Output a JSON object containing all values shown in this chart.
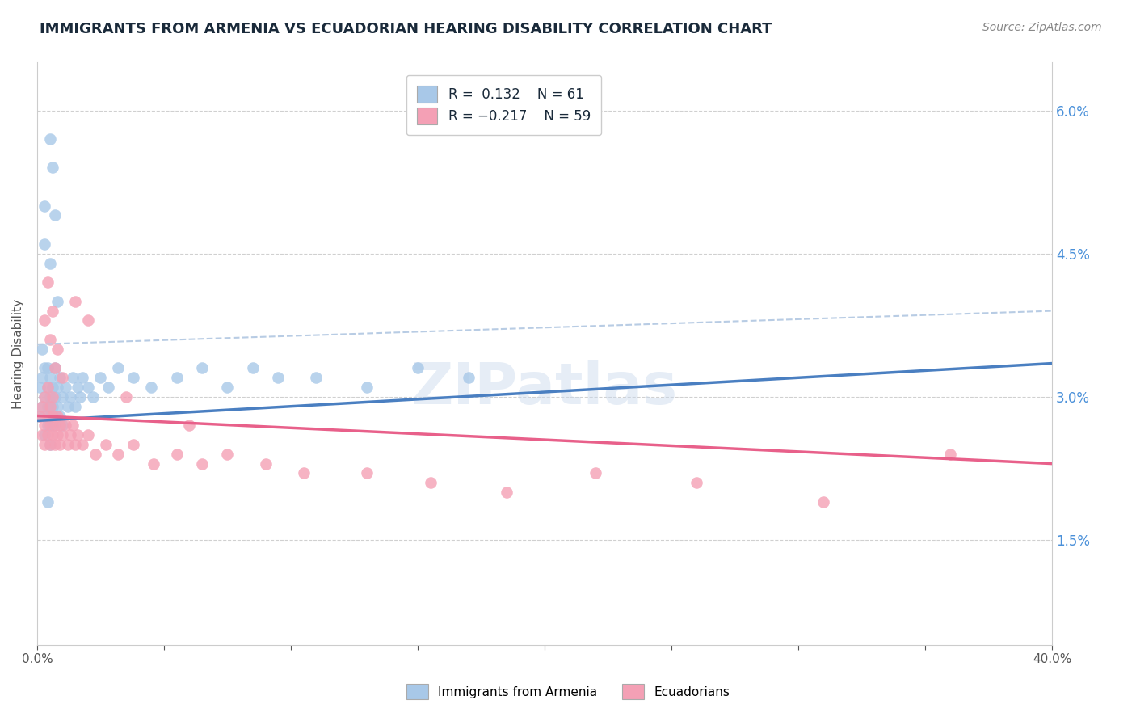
{
  "title": "IMMIGRANTS FROM ARMENIA VS ECUADORIAN HEARING DISABILITY CORRELATION CHART",
  "source": "Source: ZipAtlas.com",
  "ylabel": "Hearing Disability",
  "label1": "Immigrants from Armenia",
  "label2": "Ecuadorians",
  "x_min": 0.0,
  "x_max": 0.4,
  "y_min": 0.004,
  "y_max": 0.065,
  "y_ticks": [
    0.015,
    0.03,
    0.045,
    0.06
  ],
  "y_tick_labels": [
    "1.5%",
    "3.0%",
    "4.5%",
    "6.0%"
  ],
  "x_ticks": [
    0.0,
    0.05,
    0.1,
    0.15,
    0.2,
    0.25,
    0.3,
    0.35,
    0.4
  ],
  "x_tick_labels": [
    "0.0%",
    "",
    "",
    "",
    "",
    "",
    "",
    "",
    "40.0%"
  ],
  "color_blue": "#a8c8e8",
  "color_pink": "#f4a0b5",
  "color_blue_line": "#4a7fc1",
  "color_pink_line": "#e8608a",
  "color_dashed": "#b8cce4",
  "blue_line_y0": 0.0275,
  "blue_line_y1": 0.0335,
  "pink_line_y0": 0.028,
  "pink_line_y1": 0.023,
  "dashed_line_y0": 0.0355,
  "dashed_line_y1": 0.039,
  "blue_x": [
    0.001,
    0.001,
    0.002,
    0.002,
    0.002,
    0.003,
    0.003,
    0.003,
    0.003,
    0.004,
    0.004,
    0.004,
    0.004,
    0.005,
    0.005,
    0.005,
    0.005,
    0.006,
    0.006,
    0.006,
    0.007,
    0.007,
    0.007,
    0.008,
    0.008,
    0.009,
    0.009,
    0.01,
    0.01,
    0.011,
    0.012,
    0.013,
    0.014,
    0.015,
    0.016,
    0.017,
    0.018,
    0.02,
    0.022,
    0.025,
    0.028,
    0.032,
    0.038,
    0.045,
    0.055,
    0.065,
    0.075,
    0.085,
    0.095,
    0.11,
    0.13,
    0.15,
    0.17,
    0.003,
    0.005,
    0.007,
    0.003,
    0.008,
    0.005,
    0.006,
    0.004
  ],
  "blue_y": [
    0.031,
    0.028,
    0.029,
    0.032,
    0.035,
    0.028,
    0.03,
    0.033,
    0.026,
    0.029,
    0.031,
    0.027,
    0.033,
    0.028,
    0.03,
    0.025,
    0.032,
    0.029,
    0.031,
    0.027,
    0.03,
    0.028,
    0.033,
    0.029,
    0.031,
    0.028,
    0.032,
    0.03,
    0.027,
    0.031,
    0.029,
    0.03,
    0.032,
    0.029,
    0.031,
    0.03,
    0.032,
    0.031,
    0.03,
    0.032,
    0.031,
    0.033,
    0.032,
    0.031,
    0.032,
    0.033,
    0.031,
    0.033,
    0.032,
    0.032,
    0.031,
    0.033,
    0.032,
    0.05,
    0.044,
    0.049,
    0.046,
    0.04,
    0.057,
    0.054,
    0.019
  ],
  "pink_x": [
    0.001,
    0.002,
    0.002,
    0.003,
    0.003,
    0.003,
    0.004,
    0.004,
    0.004,
    0.005,
    0.005,
    0.005,
    0.006,
    0.006,
    0.006,
    0.007,
    0.007,
    0.008,
    0.008,
    0.009,
    0.009,
    0.01,
    0.011,
    0.012,
    0.013,
    0.014,
    0.015,
    0.016,
    0.018,
    0.02,
    0.023,
    0.027,
    0.032,
    0.038,
    0.046,
    0.055,
    0.065,
    0.075,
    0.09,
    0.105,
    0.13,
    0.155,
    0.185,
    0.22,
    0.26,
    0.31,
    0.36,
    0.003,
    0.005,
    0.007,
    0.004,
    0.006,
    0.008,
    0.01,
    0.015,
    0.02,
    0.035,
    0.06
  ],
  "pink_y": [
    0.028,
    0.026,
    0.029,
    0.025,
    0.027,
    0.03,
    0.026,
    0.028,
    0.031,
    0.025,
    0.027,
    0.029,
    0.026,
    0.028,
    0.03,
    0.025,
    0.027,
    0.026,
    0.028,
    0.025,
    0.027,
    0.026,
    0.027,
    0.025,
    0.026,
    0.027,
    0.025,
    0.026,
    0.025,
    0.026,
    0.024,
    0.025,
    0.024,
    0.025,
    0.023,
    0.024,
    0.023,
    0.024,
    0.023,
    0.022,
    0.022,
    0.021,
    0.02,
    0.022,
    0.021,
    0.019,
    0.024,
    0.038,
    0.036,
    0.033,
    0.042,
    0.039,
    0.035,
    0.032,
    0.04,
    0.038,
    0.03,
    0.027
  ]
}
